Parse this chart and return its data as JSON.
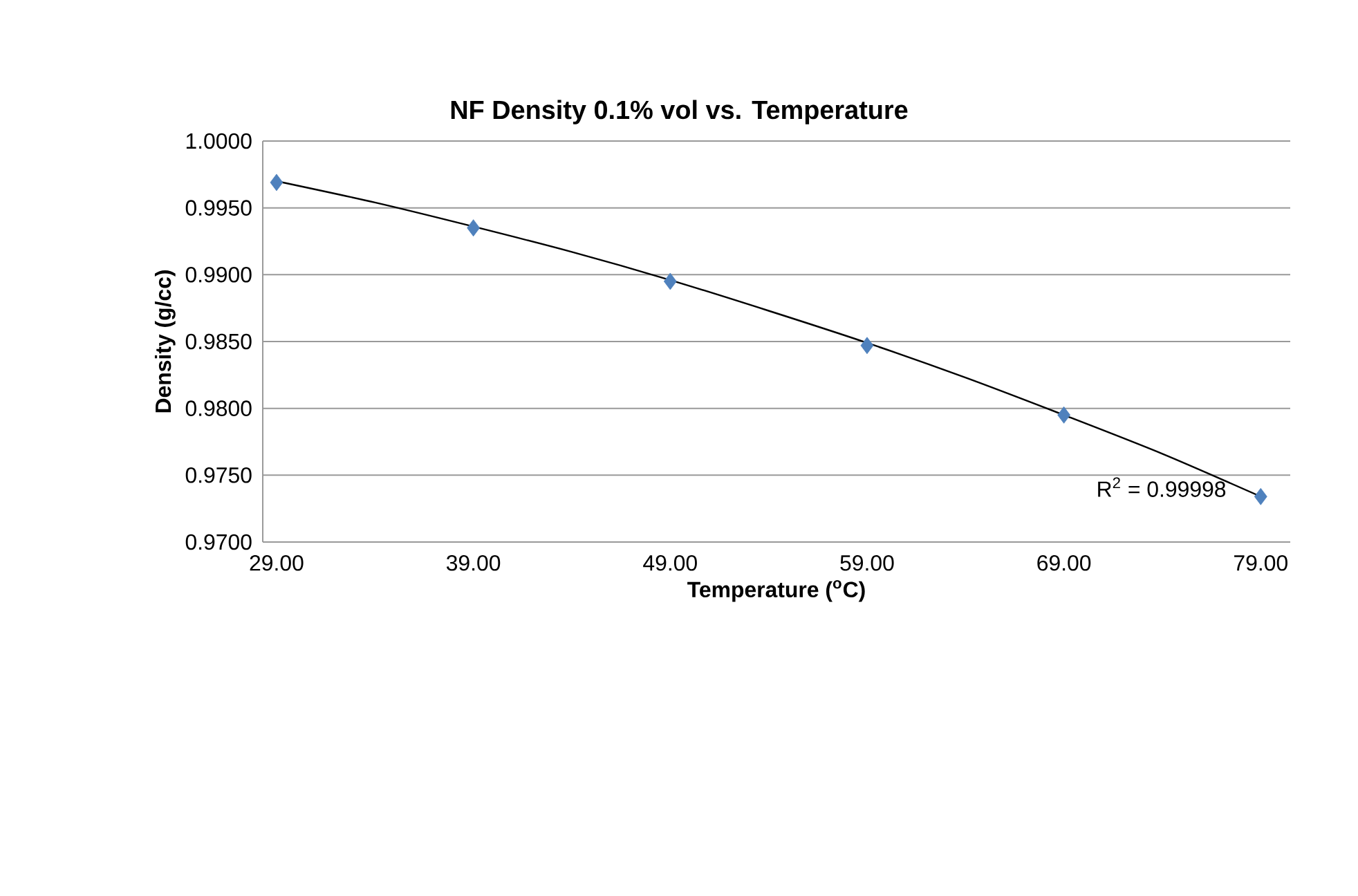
{
  "chart_data": {
    "type": "scatter",
    "title": "NF Density 0.1% vol vs. Temperature",
    "xlabel": "Temperature ($^{o}$C)",
    "ylabel": "Density (g/cc)",
    "series": [
      {
        "color": "#4f81bd",
        "marker": "diamond",
        "x": [
          29,
          39,
          49,
          59,
          69,
          79
        ],
        "values": [
          0.9969,
          0.9935,
          0.9895,
          0.9847,
          0.9795,
          0.9734
        ]
      },
      {
        "type": "line",
        "color": "#000000",
        "marker": "none",
        "line_style": "solid",
        "x": [
          29,
          34,
          39,
          44,
          49,
          54,
          59,
          64,
          69,
          74,
          79
        ],
        "values": [
          0.997,
          0.9954,
          0.9936,
          0.9917,
          0.9896,
          0.9873,
          0.9849,
          0.9823,
          0.9795,
          0.9766,
          0.9734
        ]
      }
    ],
    "xlim": [
      28.3,
      80.5
    ],
    "ylim": [
      0.97,
      1.0
    ],
    "xticks": [
      {
        "value": 29,
        "label": "29.00"
      },
      {
        "value": 39,
        "label": "39.00"
      },
      {
        "value": 49,
        "label": "49.00"
      },
      {
        "value": 59,
        "label": "59.00"
      },
      {
        "value": 69,
        "label": "69.00"
      },
      {
        "value": 79,
        "label": "79.00"
      }
    ],
    "yticks": [
      {
        "value": 0.97,
        "label": "0.9700"
      },
      {
        "value": 0.975,
        "label": "0.9750"
      },
      {
        "value": 0.98,
        "label": "0.9800"
      },
      {
        "value": 0.985,
        "label": "0.9850"
      },
      {
        "value": 0.99,
        "label": "0.9900"
      },
      {
        "value": 0.995,
        "label": "0.9950"
      },
      {
        "value": 1.0,
        "label": "1.0000"
      }
    ],
    "grid": "y",
    "annotations": [
      {
        "text": "R$^{2}$ = 0.99998",
        "x": 77.5,
        "y": 0.9741
      }
    ]
  }
}
